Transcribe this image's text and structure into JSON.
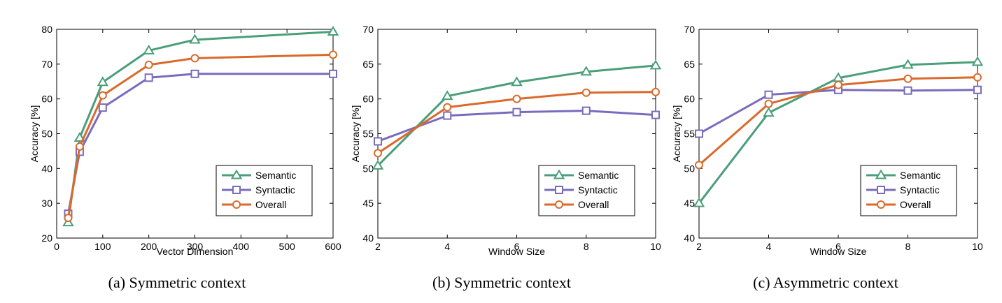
{
  "colors": {
    "semantic": "#4a9e7a",
    "syntactic": "#7a6bbd",
    "overall": "#d96a2b",
    "axis": "#000000"
  },
  "chart_data": [
    {
      "type": "line",
      "caption": "(a)  Symmetric context",
      "xlabel": "Vector Dimension",
      "ylabel": "Accuracy [%]",
      "xlim": [
        0,
        600
      ],
      "ylim": [
        20,
        80
      ],
      "xticks": [
        0,
        100,
        200,
        300,
        400,
        500,
        600
      ],
      "yticks": [
        20,
        30,
        40,
        50,
        60,
        70,
        80
      ],
      "x": [
        25,
        50,
        100,
        200,
        300,
        600
      ],
      "legend_position": "bottom-right",
      "series": [
        {
          "name": "Semantic",
          "marker": "triangle",
          "color_key": "semantic",
          "values": [
            24.5,
            48.8,
            64.8,
            73.9,
            77.0,
            79.3
          ]
        },
        {
          "name": "Syntactic",
          "marker": "square",
          "color_key": "syntactic",
          "values": [
            27.0,
            44.8,
            57.5,
            66.1,
            67.2,
            67.2
          ]
        },
        {
          "name": "Overall",
          "marker": "circle",
          "color_key": "overall",
          "values": [
            25.8,
            46.3,
            61.0,
            69.8,
            71.7,
            72.7
          ]
        }
      ]
    },
    {
      "type": "line",
      "caption": "(b)  Symmetric context",
      "xlabel": "Window Size",
      "ylabel": "Accuracy [%]",
      "xlim": [
        2,
        10
      ],
      "ylim": [
        40,
        70
      ],
      "xticks": [
        2,
        4,
        6,
        8,
        10
      ],
      "yticks": [
        40,
        45,
        50,
        55,
        60,
        65,
        70
      ],
      "x": [
        2,
        4,
        6,
        8,
        10
      ],
      "legend_position": "bottom-right",
      "series": [
        {
          "name": "Semantic",
          "marker": "triangle",
          "color_key": "semantic",
          "values": [
            50.4,
            60.4,
            62.4,
            63.9,
            64.8
          ]
        },
        {
          "name": "Syntactic",
          "marker": "square",
          "color_key": "syntactic",
          "values": [
            53.9,
            57.6,
            58.1,
            58.3,
            57.7
          ]
        },
        {
          "name": "Overall",
          "marker": "circle",
          "color_key": "overall",
          "values": [
            52.2,
            58.8,
            60.0,
            60.9,
            61.0
          ]
        }
      ]
    },
    {
      "type": "line",
      "caption": "(c)  Asymmetric context",
      "xlabel": "Window Size",
      "ylabel": "Accuracy [%]",
      "xlim": [
        2,
        10
      ],
      "ylim": [
        40,
        70
      ],
      "xticks": [
        2,
        4,
        6,
        8,
        10
      ],
      "yticks": [
        40,
        45,
        50,
        55,
        60,
        65,
        70
      ],
      "x": [
        2,
        4,
        6,
        8,
        10
      ],
      "legend_position": "bottom-right",
      "series": [
        {
          "name": "Semantic",
          "marker": "triangle",
          "color_key": "semantic",
          "values": [
            45.0,
            58.0,
            63.0,
            64.9,
            65.3
          ]
        },
        {
          "name": "Syntactic",
          "marker": "square",
          "color_key": "syntactic",
          "values": [
            55.0,
            60.6,
            61.3,
            61.2,
            61.3
          ]
        },
        {
          "name": "Overall",
          "marker": "circle",
          "color_key": "overall",
          "values": [
            50.5,
            59.3,
            62.0,
            62.9,
            63.1
          ]
        }
      ]
    }
  ]
}
